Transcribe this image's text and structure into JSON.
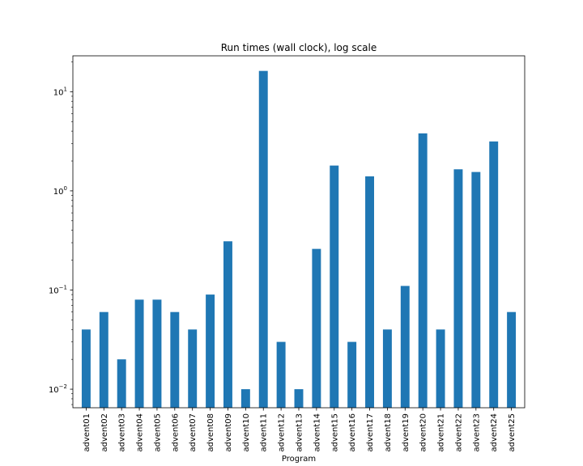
{
  "chart_data": {
    "type": "bar",
    "title": "Run times (wall clock), log scale",
    "xlabel": "Program",
    "ylabel": "",
    "yscale": "log",
    "ylim": [
      0.0065,
      23
    ],
    "yticks": [
      {
        "value": 0.01,
        "base": "10",
        "exp": "−2"
      },
      {
        "value": 0.1,
        "base": "10",
        "exp": "−1"
      },
      {
        "value": 1,
        "base": "10",
        "exp": "0"
      },
      {
        "value": 10,
        "base": "10",
        "exp": "1"
      }
    ],
    "grid": false,
    "legend": "none",
    "bar_color": "#1f77b4",
    "categories": [
      "advent01",
      "advent02",
      "advent03",
      "advent04",
      "advent05",
      "advent06",
      "advent07",
      "advent08",
      "advent09",
      "advent10",
      "advent11",
      "advent12",
      "advent13",
      "advent14",
      "advent15",
      "advent16",
      "advent17",
      "advent18",
      "advent19",
      "advent20",
      "advent21",
      "advent22",
      "advent23",
      "advent24",
      "advent25"
    ],
    "values": [
      0.04,
      0.06,
      0.02,
      0.08,
      0.08,
      0.06,
      0.04,
      0.09,
      0.31,
      0.01,
      16.2,
      0.03,
      0.01,
      0.26,
      1.8,
      0.03,
      1.4,
      0.04,
      0.11,
      3.8,
      0.04,
      1.65,
      1.55,
      3.15,
      0.06
    ]
  }
}
